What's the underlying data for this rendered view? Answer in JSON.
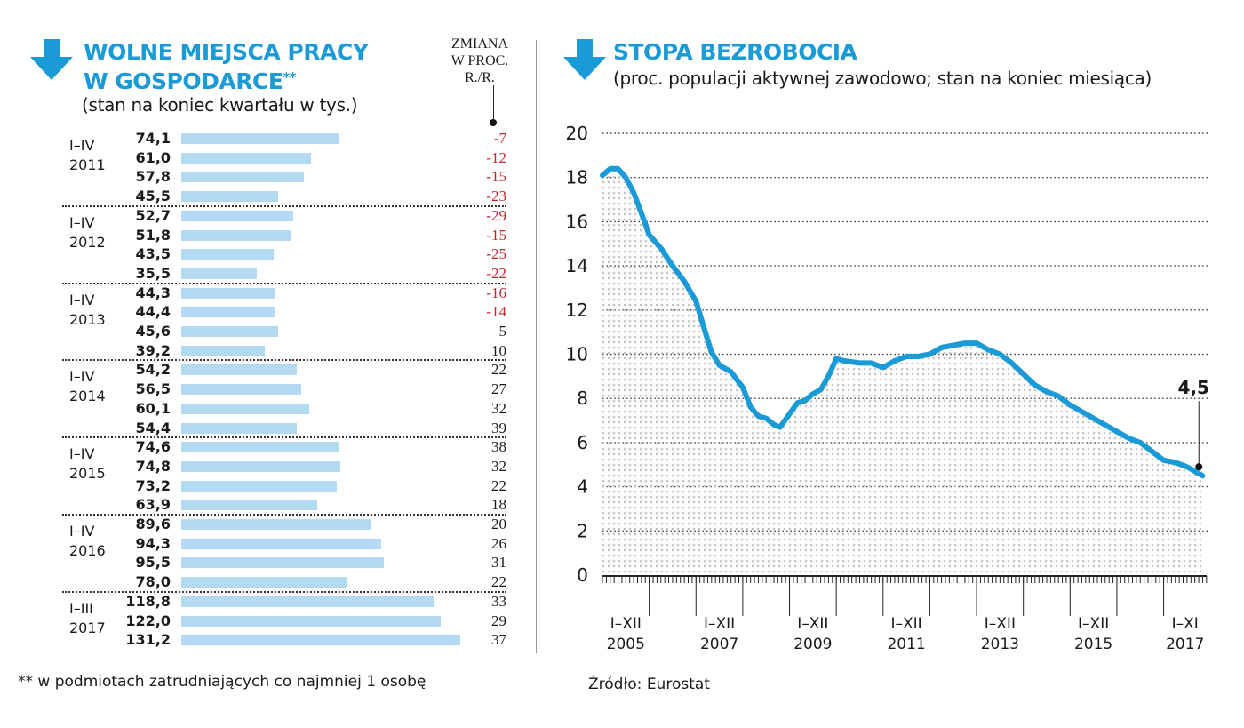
{
  "colors": {
    "accent": "#1a9ad6",
    "bar": "#b3daf3",
    "negative": "#c0282d",
    "line": "#1a9ad6"
  },
  "left": {
    "arrow_icon": "down-arrow-icon",
    "title_line1": "WOLNE MIEJSCA PRACY",
    "title_line2": "W GOSPODARCE",
    "title_mark": "**",
    "subtitle": "(stan na koniec kwartału w tys.)",
    "column_header": [
      "ZMIANA",
      "W PROC.",
      "R./R."
    ],
    "footnote": "** w podmiotach zatrudniających co najmniej 1 osobę"
  },
  "right": {
    "arrow_icon": "down-arrow-icon",
    "title": "STOPA BEZROBOCIA",
    "subtitle": "(proc. populacji aktywnej zawodowo; stan na koniec miesiąca)",
    "source": "Źródło: Eurostat",
    "last_label": "4,5"
  },
  "chart_data": [
    {
      "type": "bar",
      "orientation": "horizontal",
      "title": "WOLNE MIEJSCA PRACY W GOSPODARCE**",
      "subtitle": "(stan na koniec kwartału w tys.)",
      "groups": [
        {
          "line1": "I–IV",
          "line2": "2011",
          "values": [
            "74,1",
            "61,0",
            "57,8",
            "45,5"
          ],
          "nums": [
            74.1,
            61.0,
            57.8,
            45.5
          ],
          "changes": [
            "-7",
            "-12",
            "-15",
            "-23"
          ]
        },
        {
          "line1": "I–IV",
          "line2": "2012",
          "values": [
            "52,7",
            "51,8",
            "43,5",
            "35,5"
          ],
          "nums": [
            52.7,
            51.8,
            43.5,
            35.5
          ],
          "changes": [
            "-29",
            "-15",
            "-25",
            "-22"
          ]
        },
        {
          "line1": "I–IV",
          "line2": "2013",
          "values": [
            "44,3",
            "44,4",
            "45,6",
            "39,2"
          ],
          "nums": [
            44.3,
            44.4,
            45.6,
            39.2
          ],
          "changes": [
            "-16",
            "-14",
            "5",
            "10"
          ]
        },
        {
          "line1": "I–IV",
          "line2": "2014",
          "values": [
            "54,2",
            "56,5",
            "60,1",
            "54,4"
          ],
          "nums": [
            54.2,
            56.5,
            60.1,
            54.4
          ],
          "changes": [
            "22",
            "27",
            "32",
            "39"
          ]
        },
        {
          "line1": "I–IV",
          "line2": "2015",
          "values": [
            "74,6",
            "74,8",
            "73,2",
            "63,9"
          ],
          "nums": [
            74.6,
            74.8,
            73.2,
            63.9
          ],
          "changes": [
            "38",
            "32",
            "22",
            "18"
          ]
        },
        {
          "line1": "I–IV",
          "line2": "2016",
          "values": [
            "89,6",
            "94,3",
            "95,5",
            "78,0"
          ],
          "nums": [
            89.6,
            94.3,
            95.5,
            78.0
          ],
          "changes": [
            "20",
            "26",
            "31",
            "22"
          ]
        },
        {
          "line1": "I–III",
          "line2": "2017",
          "values": [
            "118,8",
            "122,0",
            "131,2"
          ],
          "nums": [
            118.8,
            122.0,
            131.2
          ],
          "changes": [
            "33",
            "29",
            "37"
          ]
        }
      ]
    },
    {
      "type": "area",
      "title": "STOPA BEZROBOCIA",
      "ylabel": "proc.",
      "ylim": [
        0,
        20
      ],
      "yticks": [
        "0",
        "2",
        "4",
        "6",
        "8",
        "10",
        "12",
        "14",
        "16",
        "18",
        "20"
      ],
      "x_start": "2005-01",
      "x_end": "2017-11",
      "xlabels": [
        {
          "line1": "I–XII",
          "line2": "2005"
        },
        {
          "line1": "I–XII",
          "line2": "2007"
        },
        {
          "line1": "I–XII",
          "line2": "2009"
        },
        {
          "line1": "I–XII",
          "line2": "2011"
        },
        {
          "line1": "I–XII",
          "line2": "2013"
        },
        {
          "line1": "I–XII",
          "line2": "2015"
        },
        {
          "line1": "I–XI",
          "line2": "2017"
        }
      ],
      "series": [
        {
          "name": "Stopa bezrobocia",
          "points": [
            [
              2005.0,
              18.1
            ],
            [
              2005.17,
              18.4
            ],
            [
              2005.33,
              18.4
            ],
            [
              2005.5,
              18.0
            ],
            [
              2005.67,
              17.3
            ],
            [
              2005.83,
              16.4
            ],
            [
              2006.0,
              15.4
            ],
            [
              2006.25,
              14.8
            ],
            [
              2006.5,
              14.0
            ],
            [
              2006.75,
              13.3
            ],
            [
              2007.0,
              12.4
            ],
            [
              2007.17,
              11.2
            ],
            [
              2007.33,
              10.1
            ],
            [
              2007.5,
              9.5
            ],
            [
              2007.75,
              9.2
            ],
            [
              2008.0,
              8.5
            ],
            [
              2008.17,
              7.6
            ],
            [
              2008.33,
              7.2
            ],
            [
              2008.5,
              7.1
            ],
            [
              2008.67,
              6.8
            ],
            [
              2008.8,
              6.7
            ],
            [
              2009.0,
              7.3
            ],
            [
              2009.17,
              7.8
            ],
            [
              2009.33,
              7.9
            ],
            [
              2009.5,
              8.2
            ],
            [
              2009.67,
              8.4
            ],
            [
              2009.83,
              9.0
            ],
            [
              2010.0,
              9.8
            ],
            [
              2010.17,
              9.7
            ],
            [
              2010.5,
              9.6
            ],
            [
              2010.75,
              9.6
            ],
            [
              2011.0,
              9.4
            ],
            [
              2011.25,
              9.7
            ],
            [
              2011.5,
              9.9
            ],
            [
              2011.75,
              9.9
            ],
            [
              2012.0,
              10.0
            ],
            [
              2012.25,
              10.3
            ],
            [
              2012.5,
              10.4
            ],
            [
              2012.75,
              10.5
            ],
            [
              2013.0,
              10.5
            ],
            [
              2013.25,
              10.2
            ],
            [
              2013.5,
              10.0
            ],
            [
              2013.75,
              9.6
            ],
            [
              2014.0,
              9.1
            ],
            [
              2014.25,
              8.6
            ],
            [
              2014.5,
              8.3
            ],
            [
              2014.75,
              8.1
            ],
            [
              2015.0,
              7.7
            ],
            [
              2015.25,
              7.4
            ],
            [
              2015.5,
              7.1
            ],
            [
              2015.75,
              6.8
            ],
            [
              2016.0,
              6.5
            ],
            [
              2016.25,
              6.2
            ],
            [
              2016.5,
              6.0
            ],
            [
              2016.75,
              5.6
            ],
            [
              2017.0,
              5.2
            ],
            [
              2017.25,
              5.1
            ],
            [
              2017.5,
              4.9
            ],
            [
              2017.83,
              4.5
            ]
          ]
        }
      ],
      "annotation": {
        "x": 2017.83,
        "y": 4.5,
        "text": "4,5"
      }
    }
  ]
}
